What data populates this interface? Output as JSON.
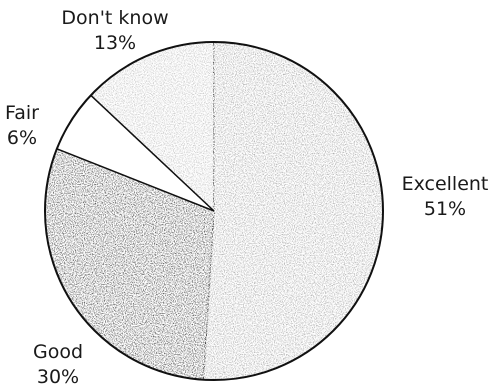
{
  "chart_data": {
    "type": "pie",
    "slices": [
      {
        "label": "Excellent",
        "value": 51,
        "value_label": "51%",
        "color": "#9a9a9a"
      },
      {
        "label": "Good",
        "value": 30,
        "value_label": "30%",
        "color": "#2b2b2b"
      },
      {
        "label": "Fair",
        "value": 6,
        "value_label": "6%",
        "color": "#ffffff"
      },
      {
        "label": "Don't know",
        "value": 13,
        "value_label": "13%",
        "color": "#b8b8b8"
      }
    ],
    "start": "12 o'clock",
    "direction": "clockwise",
    "legend": "none",
    "title": ""
  }
}
